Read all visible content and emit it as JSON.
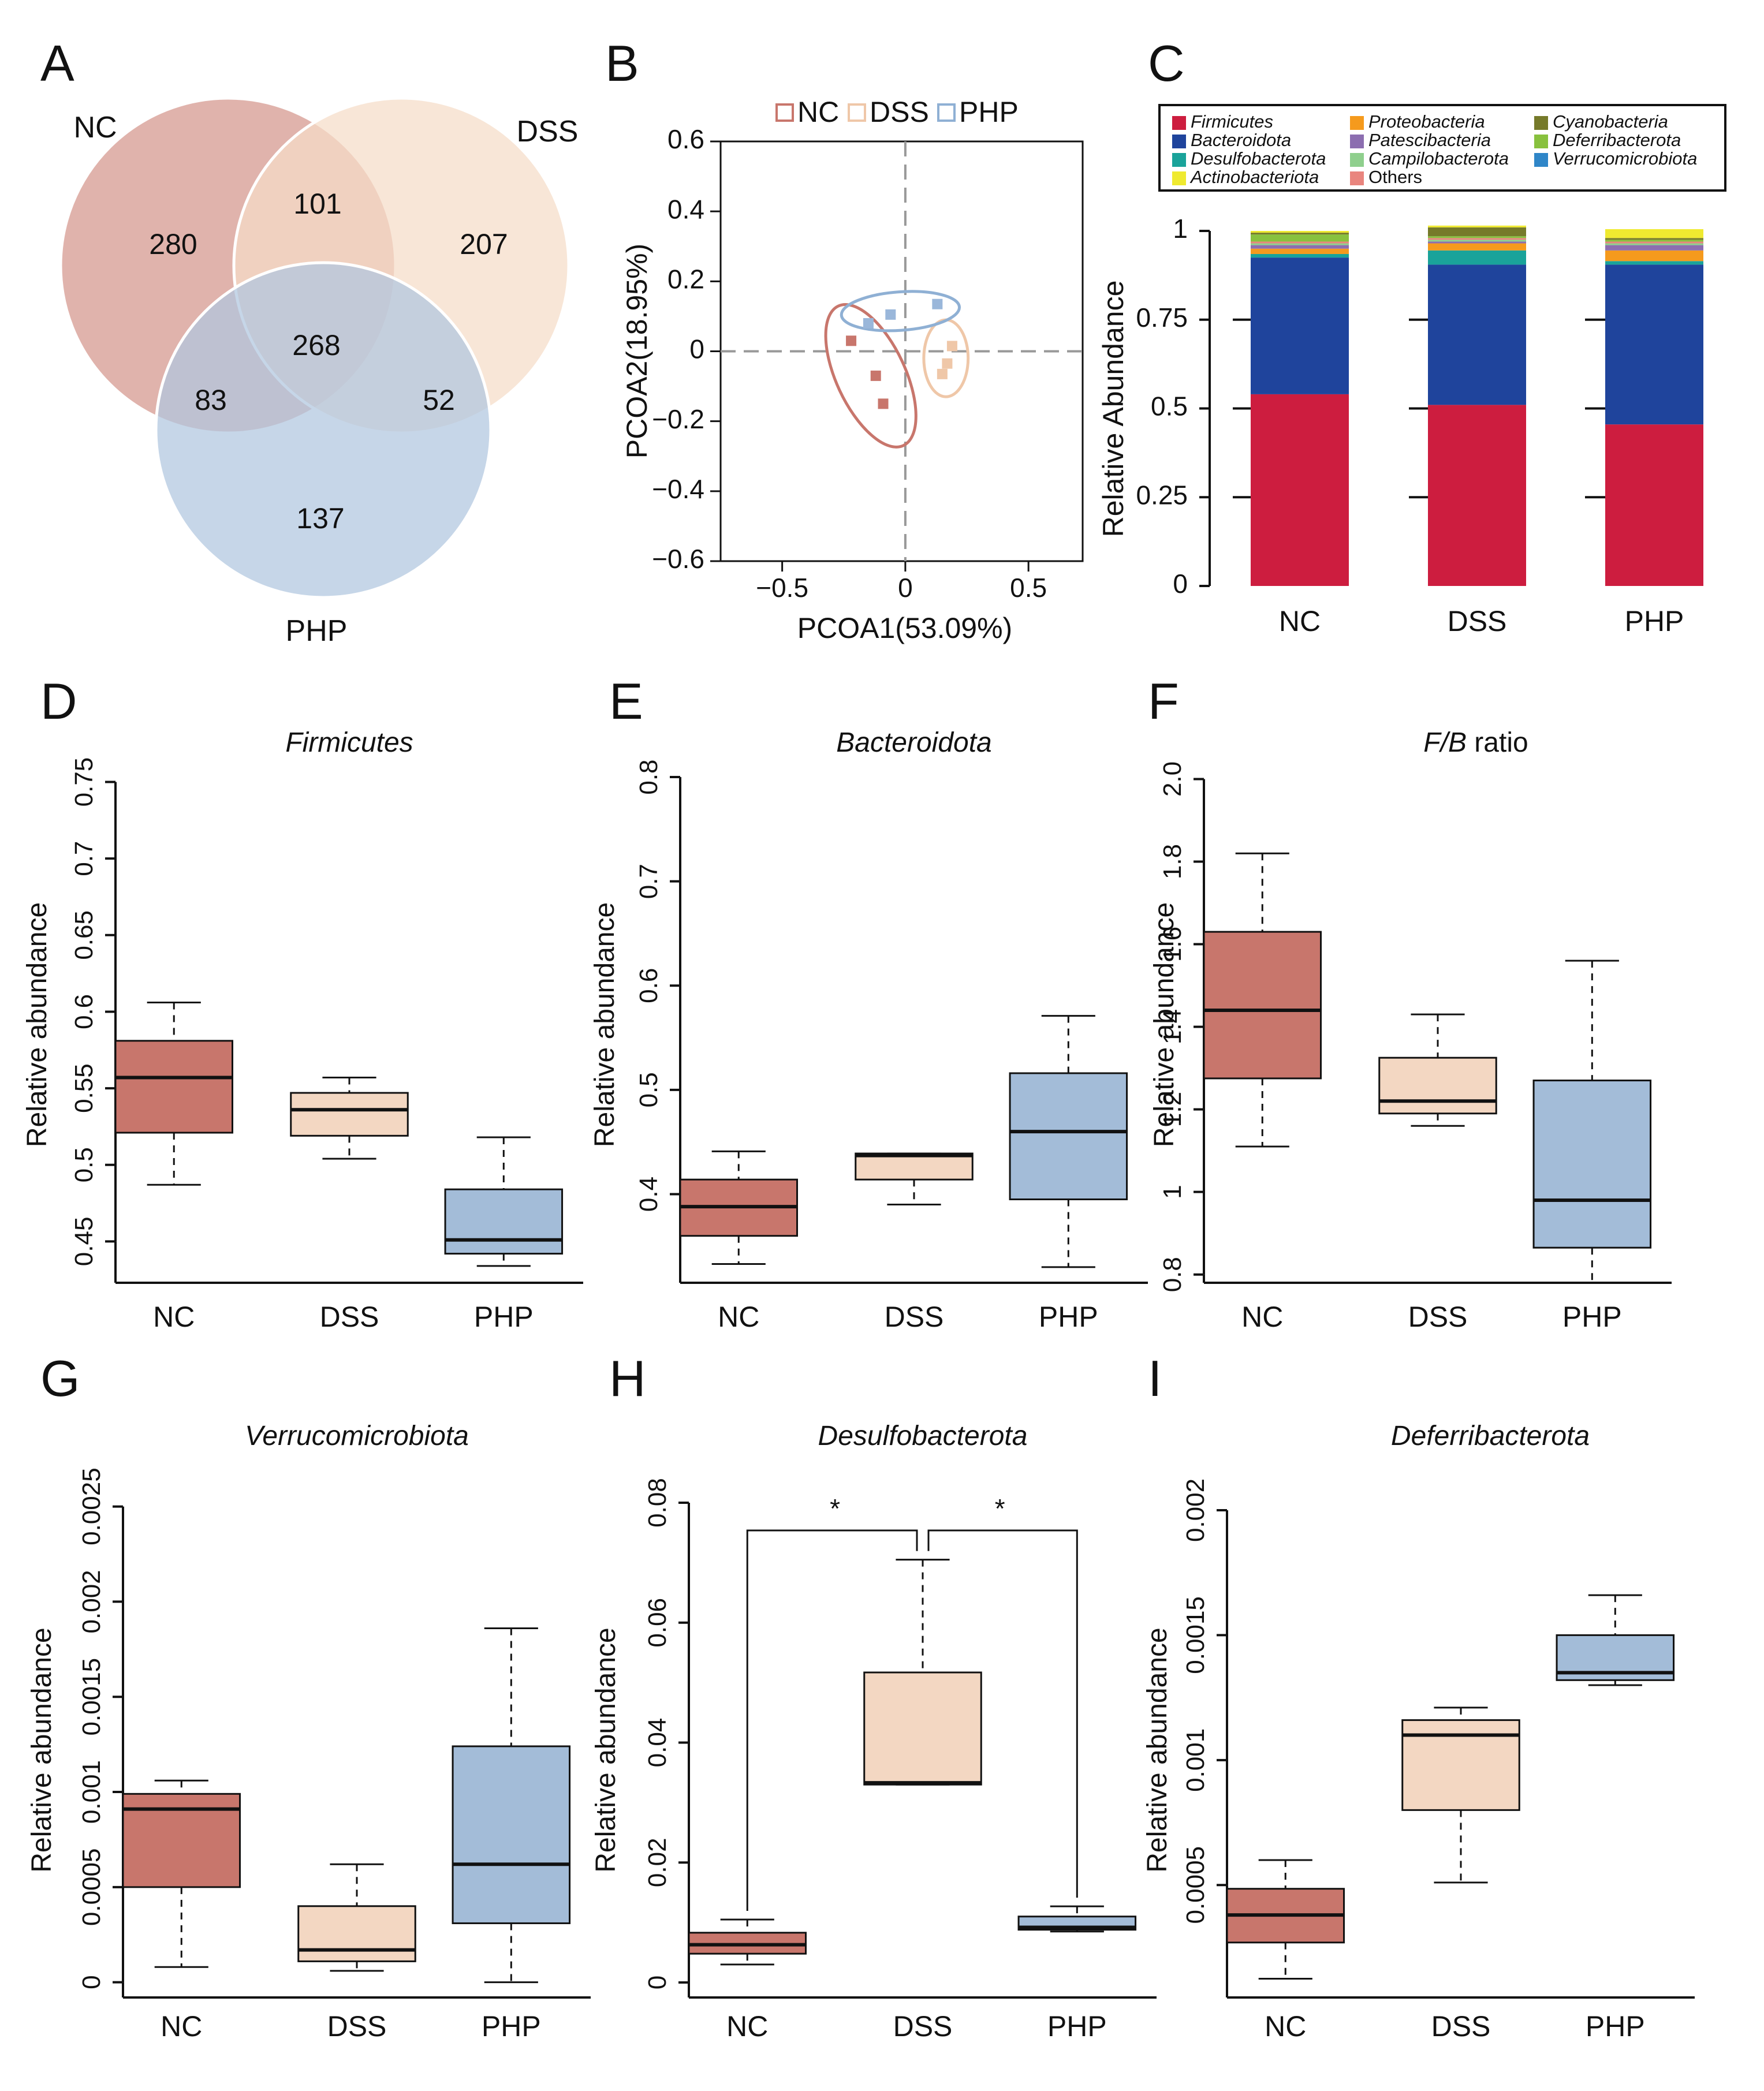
{
  "colors": {
    "nc": "#c8766c",
    "dss": "#f3d7c2",
    "php": "#a3bcd8",
    "vennNc": "#d4968c",
    "vennDss": "#f5dcc7",
    "vennPhp": "#b0c6df",
    "firmicutes": "#cd1d3f",
    "bacteroidota": "#1f449c",
    "desulfobacterota": "#1aa39a",
    "actinobacteriota": "#efea30",
    "proteobacteria": "#f59a1d",
    "patescibacteria": "#8c6eb0",
    "campilobacterota": "#8fcf8d",
    "others": "#e9857e",
    "cyanobacteria": "#767a2a",
    "deferribacterota": "#88c13e",
    "verrucomicrobiota": "#2f86c8"
  },
  "chart_data": [
    {
      "panel": "A",
      "type": "venn",
      "sets": [
        "NC",
        "DSS",
        "PHP"
      ],
      "regions": {
        "nc_only": "280",
        "dss_only": "207",
        "php_only": "137",
        "nc_dss": "101",
        "nc_php": "83",
        "dss_php": "52",
        "all": "268"
      }
    },
    {
      "panel": "B",
      "type": "scatter",
      "xlabel": "PCOA1(53.09%)",
      "ylabel": "PCOA2(18.95%)",
      "xlim": [
        -0.75,
        0.72
      ],
      "ylim": [
        -0.6,
        0.6
      ],
      "xticks": [
        -0.5,
        0,
        0.5
      ],
      "xtick_labels": [
        "−0.5",
        "0",
        "0.5"
      ],
      "yticks": [
        0.6,
        0.4,
        0.2,
        0,
        -0.2,
        -0.4,
        -0.6
      ],
      "ytick_labels": [
        "0.6",
        "0.4",
        "0.2",
        "0",
        "−0.2",
        "−0.4",
        "−0.6"
      ],
      "legend": [
        "NC",
        "DSS",
        "PHP"
      ],
      "series": [
        {
          "name": "NC",
          "points": [
            [
              -0.22,
              0.03
            ],
            [
              -0.12,
              -0.07
            ],
            [
              -0.09,
              -0.15
            ]
          ],
          "ellipse": {
            "cx": -0.14,
            "cy": -0.07,
            "rx": 0.14,
            "ry": 0.22,
            "angle": -25
          }
        },
        {
          "name": "DSS",
          "points": [
            [
              0.19,
              0.015
            ],
            [
              0.17,
              -0.035
            ],
            [
              0.15,
              -0.065
            ]
          ],
          "ellipse": {
            "cx": 0.165,
            "cy": -0.02,
            "rx": 0.09,
            "ry": 0.11,
            "angle": 0
          }
        },
        {
          "name": "PHP",
          "points": [
            [
              -0.15,
              0.08
            ],
            [
              -0.06,
              0.105
            ],
            [
              0.13,
              0.135
            ]
          ],
          "ellipse": {
            "cx": -0.02,
            "cy": 0.115,
            "rx": 0.24,
            "ry": 0.055,
            "angle": -4
          }
        }
      ]
    },
    {
      "panel": "C",
      "type": "bar",
      "stacked": true,
      "categories": [
        "NC",
        "DSS",
        "PHP"
      ],
      "ylabel": "Relative Abundance",
      "yticks": [
        0,
        0.25,
        0.5,
        0.75,
        1
      ],
      "ytick_labels": [
        "0",
        "0.25",
        "0.5",
        "0.75",
        "1"
      ],
      "legend": [
        {
          "label": "Firmicutes",
          "color_key": "firmicutes"
        },
        {
          "label": "Bacteroidota",
          "color_key": "bacteroidota"
        },
        {
          "label": "Desulfobacterota",
          "color_key": "desulfobacterota"
        },
        {
          "label": "Actinobacteriota",
          "color_key": "actinobacteriota"
        },
        {
          "label": "Proteobacteria",
          "color_key": "proteobacteria"
        },
        {
          "label": "Patescibacteria",
          "color_key": "patescibacteria"
        },
        {
          "label": "Campilobacterota",
          "color_key": "campilobacterota"
        },
        {
          "label": "Others",
          "color_key": "others"
        },
        {
          "label": "Cyanobacteria",
          "color_key": "cyanobacteria"
        },
        {
          "label": "Deferribacterota",
          "color_key": "deferribacterota"
        },
        {
          "label": "Verrucomicrobiota",
          "color_key": "verrucomicrobiota"
        }
      ],
      "series": [
        {
          "name": "Firmicutes",
          "color_key": "firmicutes",
          "values": [
            0.54,
            0.51,
            0.455
          ]
        },
        {
          "name": "Bacteroidota",
          "color_key": "bacteroidota",
          "values": [
            0.385,
            0.395,
            0.45
          ]
        },
        {
          "name": "Desulfobacterota",
          "color_key": "desulfobacterota",
          "values": [
            0.01,
            0.04,
            0.01
          ]
        },
        {
          "name": "Proteobacteria",
          "color_key": "proteobacteria",
          "values": [
            0.015,
            0.02,
            0.03
          ]
        },
        {
          "name": "Patescibacteria",
          "color_key": "patescibacteria",
          "values": [
            0.01,
            0.005,
            0.015
          ]
        },
        {
          "name": "Campilobacterota",
          "color_key": "campilobacterota",
          "values": [
            0.005,
            0.005,
            0.005
          ]
        },
        {
          "name": "Others",
          "color_key": "others",
          "values": [
            0.005,
            0.005,
            0.005
          ]
        },
        {
          "name": "Deferribacterota",
          "color_key": "deferribacterota",
          "values": [
            0.02,
            0.005,
            0.005
          ]
        },
        {
          "name": "Cyanobacteria",
          "color_key": "cyanobacteria",
          "values": [
            0.005,
            0.025,
            0.005
          ]
        },
        {
          "name": "Actinobacteriota",
          "color_key": "actinobacteriota",
          "values": [
            0.005,
            0.005,
            0.025
          ]
        }
      ]
    },
    {
      "panel": "D",
      "type": "box",
      "title": "Firmicutes",
      "title_italic": true,
      "ylabel": "Relative abundance",
      "ylim": [
        0.423,
        0.76
      ],
      "yticks": [
        0.45,
        0.5,
        0.55,
        0.6,
        0.65,
        0.7,
        0.75
      ],
      "ytick_labels": [
        "0.45",
        "0.5",
        "0.55",
        "0.6",
        "0.65",
        "0.7",
        "0.75"
      ],
      "categories": [
        "NC",
        "DSS",
        "PHP"
      ],
      "boxes": [
        {
          "min": 0.487,
          "q1": 0.521,
          "median": 0.557,
          "q3": 0.581,
          "max": 0.606
        },
        {
          "min": 0.504,
          "q1": 0.519,
          "median": 0.536,
          "q3": 0.547,
          "max": 0.557
        },
        {
          "min": 0.434,
          "q1": 0.442,
          "median": 0.451,
          "q3": 0.484,
          "max": 0.518
        }
      ]
    },
    {
      "panel": "E",
      "type": "box",
      "title": "Bacteroidota",
      "title_italic": true,
      "ylabel": "Relative abundance",
      "ylim": [
        0.315,
        0.81
      ],
      "yticks": [
        0.4,
        0.5,
        0.6,
        0.7,
        0.8
      ],
      "ytick_labels": [
        "0.4",
        "0.5",
        "0.6",
        "0.7",
        "0.8"
      ],
      "categories": [
        "NC",
        "DSS",
        "PHP"
      ],
      "boxes": [
        {
          "min": 0.333,
          "q1": 0.36,
          "median": 0.388,
          "q3": 0.414,
          "max": 0.441
        },
        {
          "min": 0.39,
          "q1": 0.414,
          "median": 0.437,
          "q3": 0.439,
          "max": 0.439
        },
        {
          "min": 0.33,
          "q1": 0.395,
          "median": 0.46,
          "q3": 0.516,
          "max": 0.571
        }
      ]
    },
    {
      "panel": "F",
      "type": "box",
      "title": "F/B",
      "title_suffix": " ratio",
      "title_italic": true,
      "ylabel": "Relative abundance",
      "ylim": [
        0.78,
        2.03
      ],
      "yticks": [
        0.8,
        1,
        1.2,
        1.4,
        1.6,
        1.8,
        2.0
      ],
      "ytick_labels": [
        "0.8",
        "1",
        "1.2",
        "1.4",
        "1.6",
        "1.8",
        "2.0"
      ],
      "categories": [
        "NC",
        "DSS",
        "PHP"
      ],
      "boxes": [
        {
          "min": 1.11,
          "q1": 1.275,
          "median": 1.44,
          "q3": 1.63,
          "max": 1.82
        },
        {
          "min": 1.16,
          "q1": 1.19,
          "median": 1.22,
          "q3": 1.325,
          "max": 1.43
        },
        {
          "min": 0.78,
          "q1": 0.865,
          "median": 0.98,
          "q3": 1.27,
          "max": 1.56
        }
      ]
    },
    {
      "panel": "G",
      "type": "box",
      "title": "Verrucomicrobiota",
      "title_italic": true,
      "ylabel": "Relative abundance",
      "ylim": [
        -8e-05,
        0.00252
      ],
      "yticks": [
        0,
        0.0005,
        0.001,
        0.0015,
        0.002,
        0.0025
      ],
      "ytick_labels": [
        "0",
        "0.0005",
        "0.001",
        "0.0015",
        "0.002",
        "0.0025"
      ],
      "categories": [
        "NC",
        "DSS",
        "PHP"
      ],
      "boxes": [
        {
          "min": 8e-05,
          "q1": 0.0005,
          "median": 0.00091,
          "q3": 0.00099,
          "max": 0.00106
        },
        {
          "min": 6e-05,
          "q1": 0.00011,
          "median": 0.00017,
          "q3": 0.0004,
          "max": 0.00062
        },
        {
          "min": 0.0,
          "q1": 0.00031,
          "median": 0.00062,
          "q3": 0.00124,
          "max": 0.00186
        }
      ]
    },
    {
      "panel": "H",
      "type": "box",
      "title": "Desulfobacterota",
      "title_italic": true,
      "ylabel": "Relative abundance",
      "ylim": [
        -0.0025,
        0.08
      ],
      "yticks": [
        0,
        0.02,
        0.04,
        0.06,
        0.08
      ],
      "ytick_labels": [
        "0",
        "0.02",
        "0.04",
        "0.06",
        "0.08"
      ],
      "categories": [
        "NC",
        "DSS",
        "PHP"
      ],
      "boxes": [
        {
          "min": 0.003,
          "q1": 0.0048,
          "median": 0.0063,
          "q3": 0.0083,
          "max": 0.0105
        },
        {
          "min": 0.033,
          "q1": 0.033,
          "median": 0.0333,
          "q3": 0.0517,
          "max": 0.0705
        },
        {
          "min": 0.0085,
          "q1": 0.0088,
          "median": 0.0092,
          "q3": 0.011,
          "max": 0.0127
        }
      ],
      "significance": [
        {
          "from": 0,
          "to": 1,
          "label": "*"
        },
        {
          "from": 1,
          "to": 2,
          "label": "*"
        }
      ]
    },
    {
      "panel": "I",
      "type": "box",
      "title": "Deferribacterota",
      "title_italic": true,
      "ylabel": "Relative abundance",
      "ylim": [
        5e-05,
        0.00203
      ],
      "yticks": [
        0.0005,
        0.001,
        0.0015,
        0.002
      ],
      "ytick_labels": [
        "0.0005",
        "0.001",
        "0.0015",
        "0.002"
      ],
      "categories": [
        "NC",
        "DSS",
        "PHP"
      ],
      "boxes": [
        {
          "min": 0.000125,
          "q1": 0.00027,
          "median": 0.00038,
          "q3": 0.000485,
          "max": 0.0006
        },
        {
          "min": 0.00051,
          "q1": 0.0008,
          "median": 0.0011,
          "q3": 0.00116,
          "max": 0.00121
        },
        {
          "min": 0.0013,
          "q1": 0.00132,
          "median": 0.00135,
          "q3": 0.0015,
          "max": 0.00166
        }
      ]
    }
  ]
}
